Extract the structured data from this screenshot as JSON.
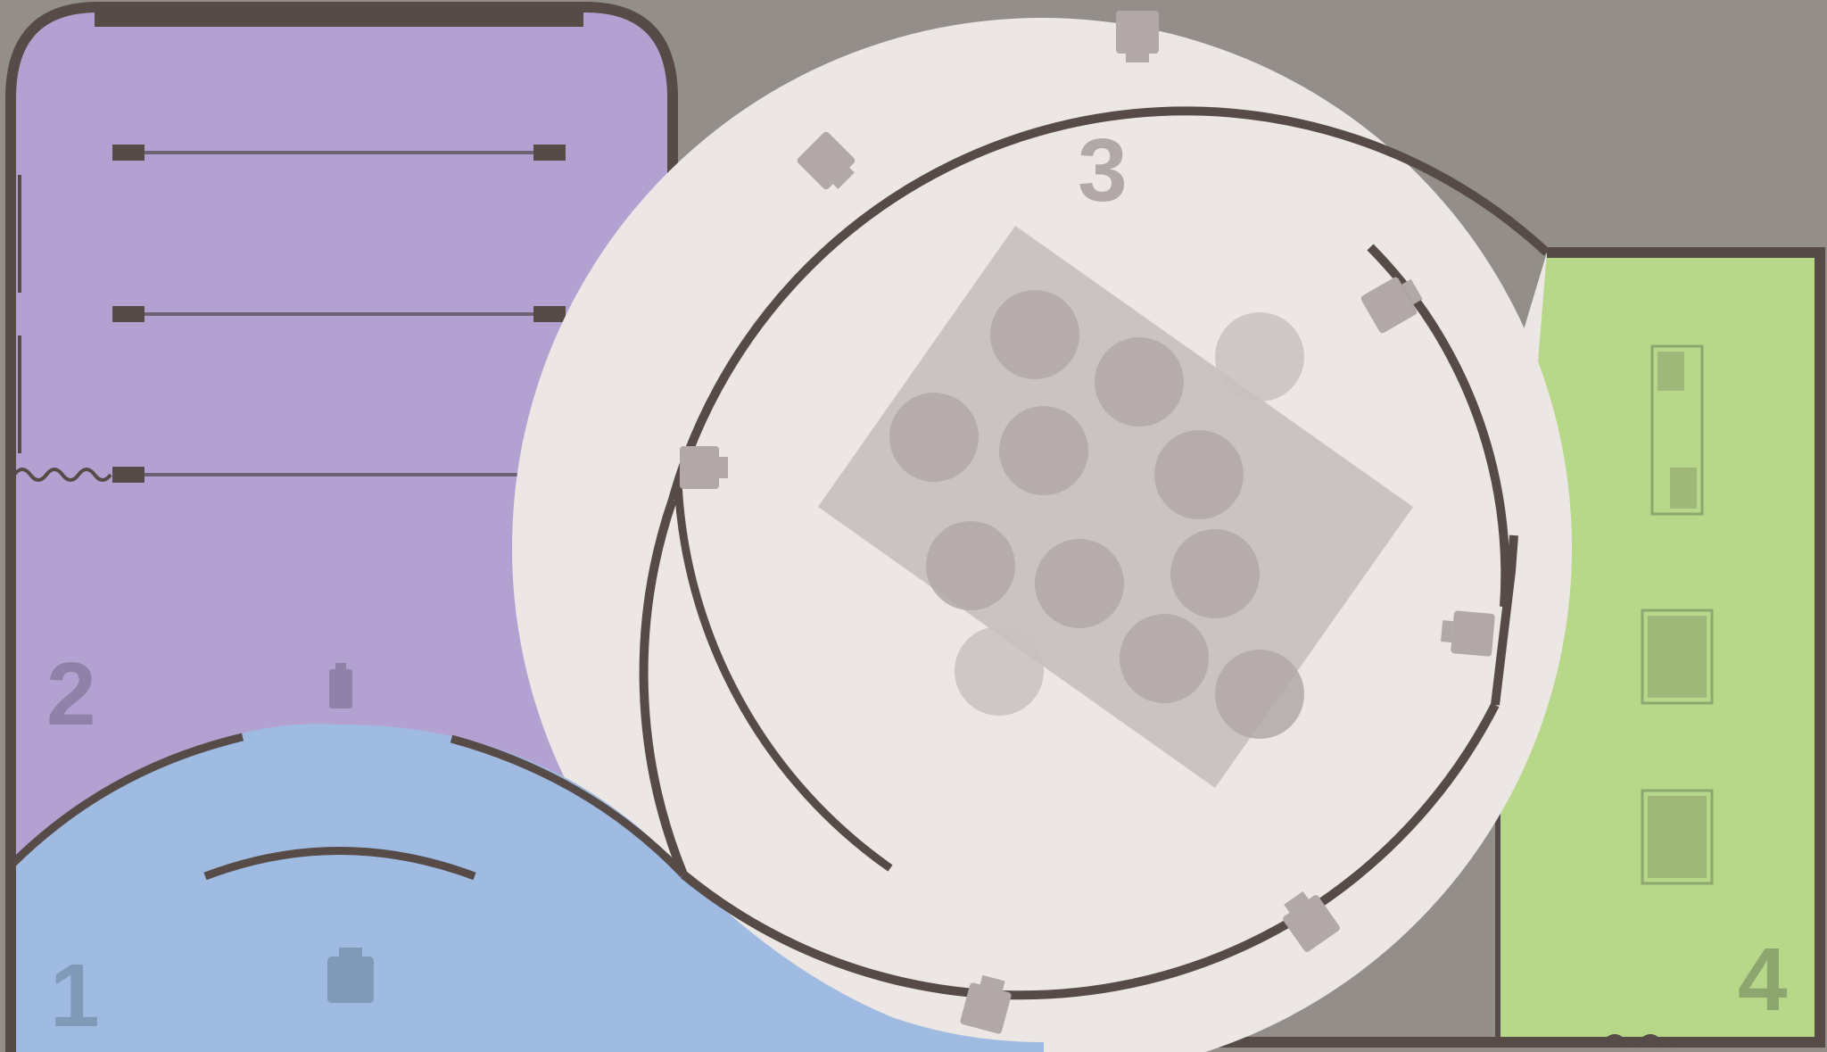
{
  "map": {
    "zones": [
      {
        "id": "zone-1",
        "number": "1",
        "color": "#9fbbe2"
      },
      {
        "id": "zone-2",
        "number": "2",
        "color": "#b3a2d1"
      },
      {
        "id": "zone-3",
        "number": "3",
        "color": "#ece7e4"
      },
      {
        "id": "zone-4",
        "number": "4",
        "color": "#b6d888"
      }
    ],
    "colors": {
      "background": "#938e89",
      "wall": "#574b48",
      "table": "#cbc3c2",
      "seat": "#b1a8a7",
      "pillar": "#b1a8a7",
      "zone_1_label": "#7f9ab6",
      "zone_2_label": "#8f81a8",
      "zone_3_label": "#b1a8a7",
      "zone_4_label": "#8da670"
    },
    "icons": [
      "speaker-icon",
      "bench-icon",
      "table-icon",
      "chair-icon",
      "cabinet-icon"
    ]
  }
}
